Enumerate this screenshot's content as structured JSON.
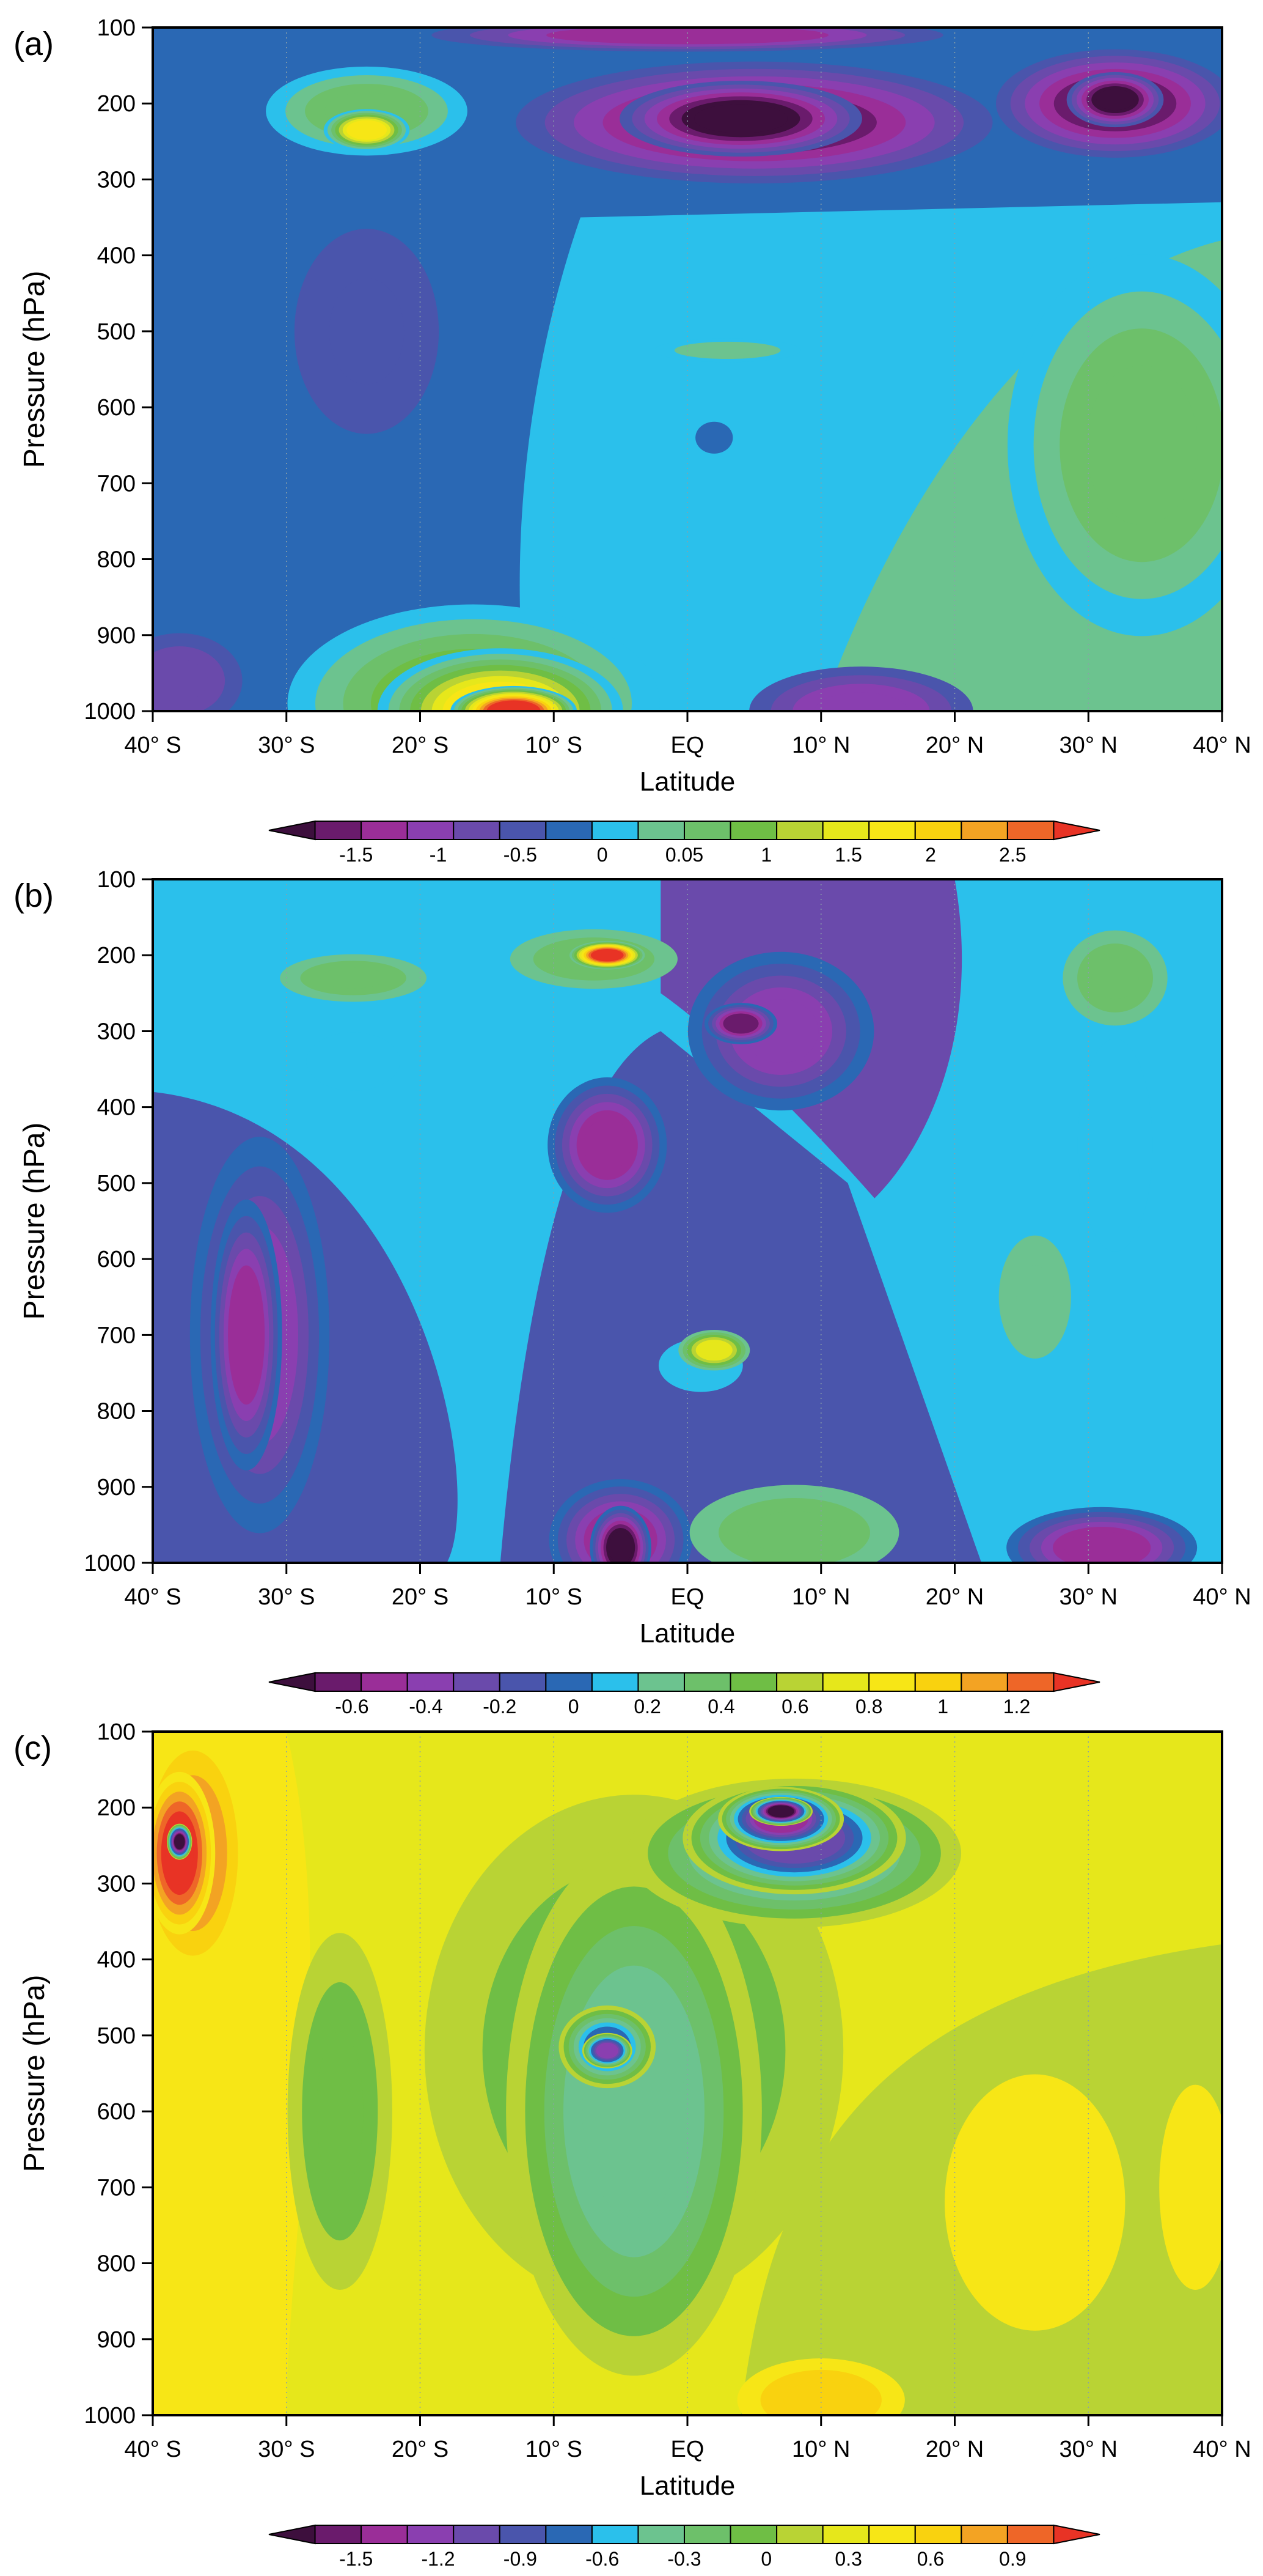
{
  "chart_data": [
    {
      "type": "heatmap",
      "panel_label": "(a)",
      "xlabel": "Latitude",
      "ylabel": "Pressure (hPa)",
      "x_ticks": [
        "40° S",
        "30° S",
        "20° S",
        "10° S",
        "EQ",
        "10° N",
        "20° N",
        "30° N",
        "40° N"
      ],
      "y_ticks": [
        "100",
        "200",
        "300",
        "400",
        "500",
        "600",
        "700",
        "800",
        "900",
        "1000"
      ],
      "xlim": [
        -40,
        40
      ],
      "ylim": [
        1000,
        100
      ],
      "colorbar": {
        "colors": [
          "#3d0f3d",
          "#6a1b6c",
          "#9a2e98",
          "#8a3fb0",
          "#6a4aab",
          "#4a55ac",
          "#2a68b4",
          "#2bc0eb",
          "#6cc38f",
          "#6dc06a",
          "#6fbe45",
          "#b9d334",
          "#e6e71b",
          "#f7e616",
          "#f9d20f",
          "#f3a323",
          "#ee6628",
          "#e83325"
        ],
        "labels": [
          "-1.5",
          "-1",
          "-0.5",
          "0",
          "0.05",
          "1",
          "1.5",
          "2",
          "2.5"
        ],
        "extend": "both"
      },
      "blobs": [
        {
          "lat": -24,
          "p": 210,
          "rx": 9,
          "ry": 70,
          "level": 9
        },
        {
          "lat": -24,
          "p": 235,
          "rx": 3.5,
          "ry": 30,
          "level": 13
        },
        {
          "lat": 5,
          "p": 225,
          "rx": 20,
          "ry": 90,
          "level": 1
        },
        {
          "lat": 4,
          "p": 220,
          "rx": 10,
          "ry": 55,
          "level": 0
        },
        {
          "lat": 32,
          "p": 200,
          "rx": 10,
          "ry": 80,
          "level": 1
        },
        {
          "lat": 32,
          "p": 195,
          "rx": 4,
          "ry": 40,
          "level": 0
        },
        {
          "lat": -24,
          "p": 500,
          "rx": 8,
          "ry": 200,
          "level": 5
        },
        {
          "lat": 2,
          "p": 640,
          "rx": 4,
          "ry": 60,
          "level": 6
        },
        {
          "lat": 3,
          "p": 525,
          "rx": 7,
          "ry": 20,
          "level": 8
        },
        {
          "lat": 34,
          "p": 650,
          "rx": 12,
          "ry": 300,
          "level": 9
        },
        {
          "lat": -16,
          "p": 990,
          "rx": 16,
          "ry": 150,
          "level": 10
        },
        {
          "lat": -14,
          "p": 1000,
          "rx": 10,
          "ry": 90,
          "level": 13
        },
        {
          "lat": -13,
          "p": 1000,
          "rx": 5,
          "ry": 35,
          "level": 17
        },
        {
          "lat": 13,
          "p": 1000,
          "rx": 10,
          "ry": 70,
          "level": 3
        },
        {
          "lat": -38,
          "p": 960,
          "rx": 6,
          "ry": 80,
          "level": 4
        },
        {
          "lat": 0,
          "p": 110,
          "rx": 22,
          "ry": 25,
          "level": 2
        }
      ]
    },
    {
      "type": "heatmap",
      "panel_label": "(b)",
      "xlabel": "Latitude",
      "ylabel": "Pressure (hPa)",
      "x_ticks": [
        "40° S",
        "30° S",
        "20° S",
        "10° S",
        "EQ",
        "10° N",
        "20° N",
        "30° N",
        "40° N"
      ],
      "y_ticks": [
        "100",
        "200",
        "300",
        "400",
        "500",
        "600",
        "700",
        "800",
        "900",
        "1000"
      ],
      "xlim": [
        -40,
        40
      ],
      "ylim": [
        1000,
        100
      ],
      "colorbar": {
        "colors": [
          "#3d0f3d",
          "#6a1b6c",
          "#9a2e98",
          "#8a3fb0",
          "#6a4aab",
          "#4a55ac",
          "#2a68b4",
          "#2bc0eb",
          "#6cc38f",
          "#6dc06a",
          "#6fbe45",
          "#b9d334",
          "#e6e71b",
          "#f7e616",
          "#f9d20f",
          "#f3a323",
          "#ee6628",
          "#e83325"
        ],
        "labels": [
          "-0.6",
          "-0.4",
          "-0.2",
          "0",
          "0.2",
          "0.4",
          "0.6",
          "0.8",
          "1",
          "1.2"
        ],
        "extend": "both"
      },
      "blobs": [
        {
          "lat": -25,
          "p": 340,
          "rx": 10,
          "ry": 110,
          "level": 7
        },
        {
          "lat": -25,
          "p": 230,
          "rx": 7,
          "ry": 40,
          "level": 9
        },
        {
          "lat": -32,
          "p": 700,
          "rx": 6,
          "ry": 300,
          "level": 3
        },
        {
          "lat": -33,
          "p": 700,
          "rx": 3,
          "ry": 200,
          "level": 2
        },
        {
          "lat": -7,
          "p": 205,
          "rx": 8,
          "ry": 50,
          "level": 9
        },
        {
          "lat": -6,
          "p": 200,
          "rx": 3,
          "ry": 20,
          "level": 17
        },
        {
          "lat": -6,
          "p": 450,
          "rx": 5,
          "ry": 100,
          "level": 2
        },
        {
          "lat": 7,
          "p": 300,
          "rx": 8,
          "ry": 120,
          "level": 3
        },
        {
          "lat": 4,
          "p": 290,
          "rx": 3,
          "ry": 30,
          "level": 1
        },
        {
          "lat": 1,
          "p": 740,
          "rx": 9,
          "ry": 100,
          "level": 7
        },
        {
          "lat": 2,
          "p": 720,
          "rx": 3,
          "ry": 30,
          "level": 12
        },
        {
          "lat": 32,
          "p": 450,
          "rx": 8,
          "ry": 400,
          "level": 7
        },
        {
          "lat": 32,
          "p": 230,
          "rx": 5,
          "ry": 80,
          "level": 9
        },
        {
          "lat": 26,
          "p": 650,
          "rx": 4,
          "ry": 120,
          "level": 8
        },
        {
          "lat": -5,
          "p": 970,
          "rx": 6,
          "ry": 90,
          "level": 2
        },
        {
          "lat": -5,
          "p": 980,
          "rx": 2.5,
          "ry": 60,
          "level": 0
        },
        {
          "lat": 8,
          "p": 960,
          "rx": 10,
          "ry": 80,
          "level": 9
        },
        {
          "lat": 31,
          "p": 980,
          "rx": 8,
          "ry": 60,
          "level": 2
        }
      ]
    },
    {
      "type": "heatmap",
      "panel_label": "(c)",
      "xlabel": "Latitude",
      "ylabel": "Pressure (hPa)",
      "x_ticks": [
        "40° S",
        "30° S",
        "20° S",
        "10° S",
        "EQ",
        "10° N",
        "20° N",
        "30° N",
        "40° N"
      ],
      "y_ticks": [
        "100",
        "200",
        "300",
        "400",
        "500",
        "600",
        "700",
        "800",
        "900",
        "1000"
      ],
      "xlim": [
        -40,
        40
      ],
      "ylim": [
        1000,
        100
      ],
      "colorbar": {
        "colors": [
          "#3d0f3d",
          "#6a1b6c",
          "#9a2e98",
          "#8a3fb0",
          "#6a4aab",
          "#4a55ac",
          "#2a68b4",
          "#2bc0eb",
          "#6cc38f",
          "#6dc06a",
          "#6fbe45",
          "#b9d334",
          "#e6e71b",
          "#f7e616",
          "#f9d20f",
          "#f3a323",
          "#ee6628",
          "#e83325"
        ],
        "labels": [
          "-1.5",
          "-1.2",
          "-0.9",
          "-0.6",
          "-0.3",
          "0",
          "0.3",
          "0.6",
          "0.9"
        ],
        "extend": "both"
      },
      "blobs": [
        {
          "lat": -4,
          "p": 520,
          "rx": 20,
          "ry": 430,
          "level": 10
        },
        {
          "lat": -4,
          "p": 600,
          "rx": 11,
          "ry": 400,
          "level": 8
        },
        {
          "lat": 8,
          "p": 260,
          "rx": 14,
          "ry": 110,
          "level": 7
        },
        {
          "lat": 8,
          "p": 240,
          "rx": 9,
          "ry": 80,
          "level": 4
        },
        {
          "lat": 7,
          "p": 215,
          "rx": 5,
          "ry": 45,
          "level": 2
        },
        {
          "lat": 7,
          "p": 205,
          "rx": 2.5,
          "ry": 20,
          "level": 0
        },
        {
          "lat": -6,
          "p": 515,
          "rx": 4,
          "ry": 60,
          "level": 6
        },
        {
          "lat": -6,
          "p": 520,
          "rx": 2,
          "ry": 25,
          "level": 3
        },
        {
          "lat": -37,
          "p": 260,
          "rx": 5,
          "ry": 200,
          "level": 15
        },
        {
          "lat": -38,
          "p": 260,
          "rx": 3,
          "ry": 120,
          "level": 17
        },
        {
          "lat": -38,
          "p": 245,
          "rx": 1,
          "ry": 25,
          "level": 0
        },
        {
          "lat": 26,
          "p": 720,
          "rx": 10,
          "ry": 250,
          "level": 13
        },
        {
          "lat": 10,
          "p": 980,
          "rx": 8,
          "ry": 70,
          "level": 14
        },
        {
          "lat": -26,
          "p": 600,
          "rx": 5,
          "ry": 300,
          "level": 10
        },
        {
          "lat": 38,
          "p": 700,
          "rx": 4,
          "ry": 200,
          "level": 13
        }
      ]
    }
  ]
}
